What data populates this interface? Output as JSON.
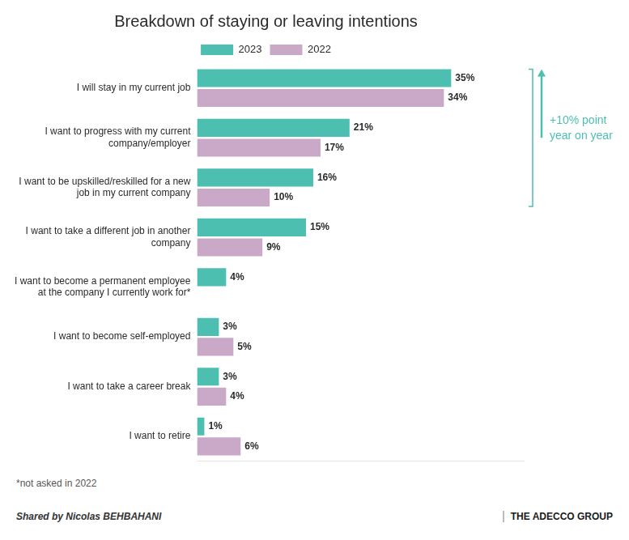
{
  "chart_data": {
    "type": "bar",
    "orientation": "horizontal",
    "title": "Breakdown of staying or leaving intentions",
    "categories": [
      "I will stay in my current job",
      "I want to progress with my current\ncompany/employer",
      "I want to be upskilled/reskilled for a new\njob in my current company",
      "I want to take a different job in another\ncompany",
      "I want to become a permanent employee\nat the company I currently work for*",
      "I want to become self-employed",
      "I want to take a career break",
      "I want to retire"
    ],
    "series": [
      {
        "name": "2023",
        "color": "#4DBFB0",
        "values": [
          35,
          21,
          16,
          15,
          4,
          3,
          3,
          1
        ],
        "value_labels": [
          "35%",
          "21%",
          "16%",
          "15%",
          "4%",
          "3%",
          "3%",
          "1%"
        ]
      },
      {
        "name": "2022",
        "color": "#C9A8C8",
        "values": [
          34,
          17,
          10,
          9,
          null,
          5,
          4,
          6
        ],
        "value_labels": [
          "34%",
          "17%",
          "10%",
          "9%",
          null,
          "5%",
          "4%",
          "6%"
        ]
      }
    ],
    "xlim": [
      0,
      45
    ],
    "tick_labels": "y",
    "grid": false,
    "legend": "top",
    "data_labels": true,
    "annotations": [
      {
        "text": "+10% point\nyear on year",
        "color": "#4DBFB0"
      }
    ],
    "footnote": "*not asked in 2022",
    "footer": "Shared by Nicolas BEHBAHANI",
    "footer_brand": "THE ADECCO GROUP"
  }
}
